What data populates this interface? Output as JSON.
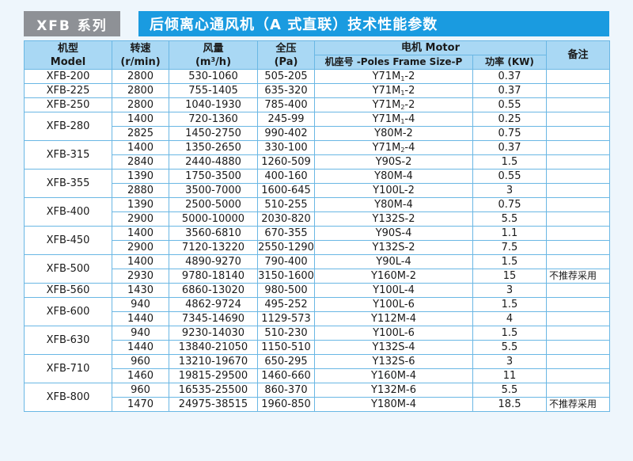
{
  "header": {
    "series": "XFB 系列",
    "title": "后倾离心通风机（A 式直联）技术性能参数"
  },
  "columns": {
    "model_cn": "机型",
    "model_en": "Model",
    "speed_cn": "转速",
    "speed_unit": "(r/min)",
    "flow_cn": "风量",
    "flow_unit_pre": "(m",
    "flow_unit_sup": "3",
    "flow_unit_post": "/h)",
    "pressure_cn": "全压",
    "pressure_unit": "(Pa)",
    "motor": "电机 Motor",
    "frame": "机座号 -Poles Frame Size-P",
    "power": "功率 (KW)",
    "remark": "备注"
  },
  "groups": [
    {
      "model": "XFB-200",
      "rows": [
        {
          "speed": "2800",
          "flow": "530-1060",
          "pressure": "505-205",
          "frame": "Y71M",
          "frame_sub": "1",
          "frame_post": "-2",
          "power": "0.37",
          "remark": ""
        }
      ]
    },
    {
      "model": "XFB-225",
      "rows": [
        {
          "speed": "2800",
          "flow": "755-1405",
          "pressure": "635-320",
          "frame": "Y71M",
          "frame_sub": "1",
          "frame_post": "-2",
          "power": "0.37",
          "remark": ""
        }
      ]
    },
    {
      "model": "XFB-250",
      "rows": [
        {
          "speed": "2800",
          "flow": "1040-1930",
          "pressure": "785-400",
          "frame": "Y71M",
          "frame_sub": "2",
          "frame_post": "-2",
          "power": "0.55",
          "remark": ""
        }
      ]
    },
    {
      "model": "XFB-280",
      "rows": [
        {
          "speed": "1400",
          "flow": "720-1360",
          "pressure": "245-99",
          "frame": "Y71M",
          "frame_sub": "1",
          "frame_post": "-4",
          "power": "0.25",
          "remark": ""
        },
        {
          "speed": "2825",
          "flow": "1450-2750",
          "pressure": "990-402",
          "frame": "Y80M-2",
          "frame_sub": "",
          "frame_post": "",
          "power": "0.75",
          "remark": ""
        }
      ]
    },
    {
      "model": "XFB-315",
      "rows": [
        {
          "speed": "1400",
          "flow": "1350-2650",
          "pressure": "330-100",
          "frame": "Y71M",
          "frame_sub": "2",
          "frame_post": "-4",
          "power": "0.37",
          "remark": ""
        },
        {
          "speed": "2840",
          "flow": "2440-4880",
          "pressure": "1260-509",
          "frame": "Y90S-2",
          "frame_sub": "",
          "frame_post": "",
          "power": "1.5",
          "remark": ""
        }
      ]
    },
    {
      "model": "XFB-355",
      "rows": [
        {
          "speed": "1390",
          "flow": "1750-3500",
          "pressure": "400-160",
          "frame": "Y80M-4",
          "frame_sub": "",
          "frame_post": "",
          "power": "0.55",
          "remark": ""
        },
        {
          "speed": "2880",
          "flow": "3500-7000",
          "pressure": "1600-645",
          "frame": "Y100L-2",
          "frame_sub": "",
          "frame_post": "",
          "power": "3",
          "remark": ""
        }
      ]
    },
    {
      "model": "XFB-400",
      "rows": [
        {
          "speed": "1390",
          "flow": "2500-5000",
          "pressure": "510-255",
          "frame": "Y80M-4",
          "frame_sub": "",
          "frame_post": "",
          "power": "0.75",
          "remark": ""
        },
        {
          "speed": "2900",
          "flow": "5000-10000",
          "pressure": "2030-820",
          "frame": "Y132S-2",
          "frame_sub": "",
          "frame_post": "",
          "power": "5.5",
          "remark": ""
        }
      ]
    },
    {
      "model": "XFB-450",
      "rows": [
        {
          "speed": "1400",
          "flow": "3560-6810",
          "pressure": "670-355",
          "frame": "Y90S-4",
          "frame_sub": "",
          "frame_post": "",
          "power": "1.1",
          "remark": ""
        },
        {
          "speed": "2900",
          "flow": "7120-13220",
          "pressure": "2550-1290",
          "frame": "Y132S-2",
          "frame_sub": "",
          "frame_post": "",
          "power": "7.5",
          "remark": ""
        }
      ]
    },
    {
      "model": "XFB-500",
      "rows": [
        {
          "speed": "1400",
          "flow": "4890-9270",
          "pressure": "790-400",
          "frame": "Y90L-4",
          "frame_sub": "",
          "frame_post": "",
          "power": "1.5",
          "remark": ""
        },
        {
          "speed": "2930",
          "flow": "9780-18140",
          "pressure": "3150-1600",
          "frame": "Y160M-2",
          "frame_sub": "",
          "frame_post": "",
          "power": "15",
          "remark": "不推荐采用"
        }
      ]
    },
    {
      "model": "XFB-560",
      "rows": [
        {
          "speed": "1430",
          "flow": "6860-13020",
          "pressure": "980-500",
          "frame": "Y100L-4",
          "frame_sub": "",
          "frame_post": "",
          "power": "3",
          "remark": ""
        }
      ]
    },
    {
      "model": "XFB-600",
      "rows": [
        {
          "speed": "940",
          "flow": "4862-9724",
          "pressure": "495-252",
          "frame": "Y100L-6",
          "frame_sub": "",
          "frame_post": "",
          "power": "1.5",
          "remark": ""
        },
        {
          "speed": "1440",
          "flow": "7345-14690",
          "pressure": "1129-573",
          "frame": "Y112M-4",
          "frame_sub": "",
          "frame_post": "",
          "power": "4",
          "remark": ""
        }
      ]
    },
    {
      "model": "XFB-630",
      "rows": [
        {
          "speed": "940",
          "flow": "9230-14030",
          "pressure": "510-230",
          "frame": "Y100L-6",
          "frame_sub": "",
          "frame_post": "",
          "power": "1.5",
          "remark": ""
        },
        {
          "speed": "1440",
          "flow": "13840-21050",
          "pressure": "1150-510",
          "frame": "Y132S-4",
          "frame_sub": "",
          "frame_post": "",
          "power": "5.5",
          "remark": ""
        }
      ]
    },
    {
      "model": "XFB-710",
      "rows": [
        {
          "speed": "960",
          "flow": "13210-19670",
          "pressure": "650-295",
          "frame": "Y132S-6",
          "frame_sub": "",
          "frame_post": "",
          "power": "3",
          "remark": ""
        },
        {
          "speed": "1460",
          "flow": "19815-29500",
          "pressure": "1460-660",
          "frame": "Y160M-4",
          "frame_sub": "",
          "frame_post": "",
          "power": "11",
          "remark": ""
        }
      ]
    },
    {
      "model": "XFB-800",
      "rows": [
        {
          "speed": "960",
          "flow": "16535-25500",
          "pressure": "860-370",
          "frame": "Y132M-6",
          "frame_sub": "",
          "frame_post": "",
          "power": "5.5",
          "remark": ""
        },
        {
          "speed": "1470",
          "flow": "24975-38515",
          "pressure": "1960-850",
          "frame": "Y180M-4",
          "frame_sub": "",
          "frame_post": "",
          "power": "18.5",
          "remark": "不推荐采用"
        }
      ]
    }
  ]
}
